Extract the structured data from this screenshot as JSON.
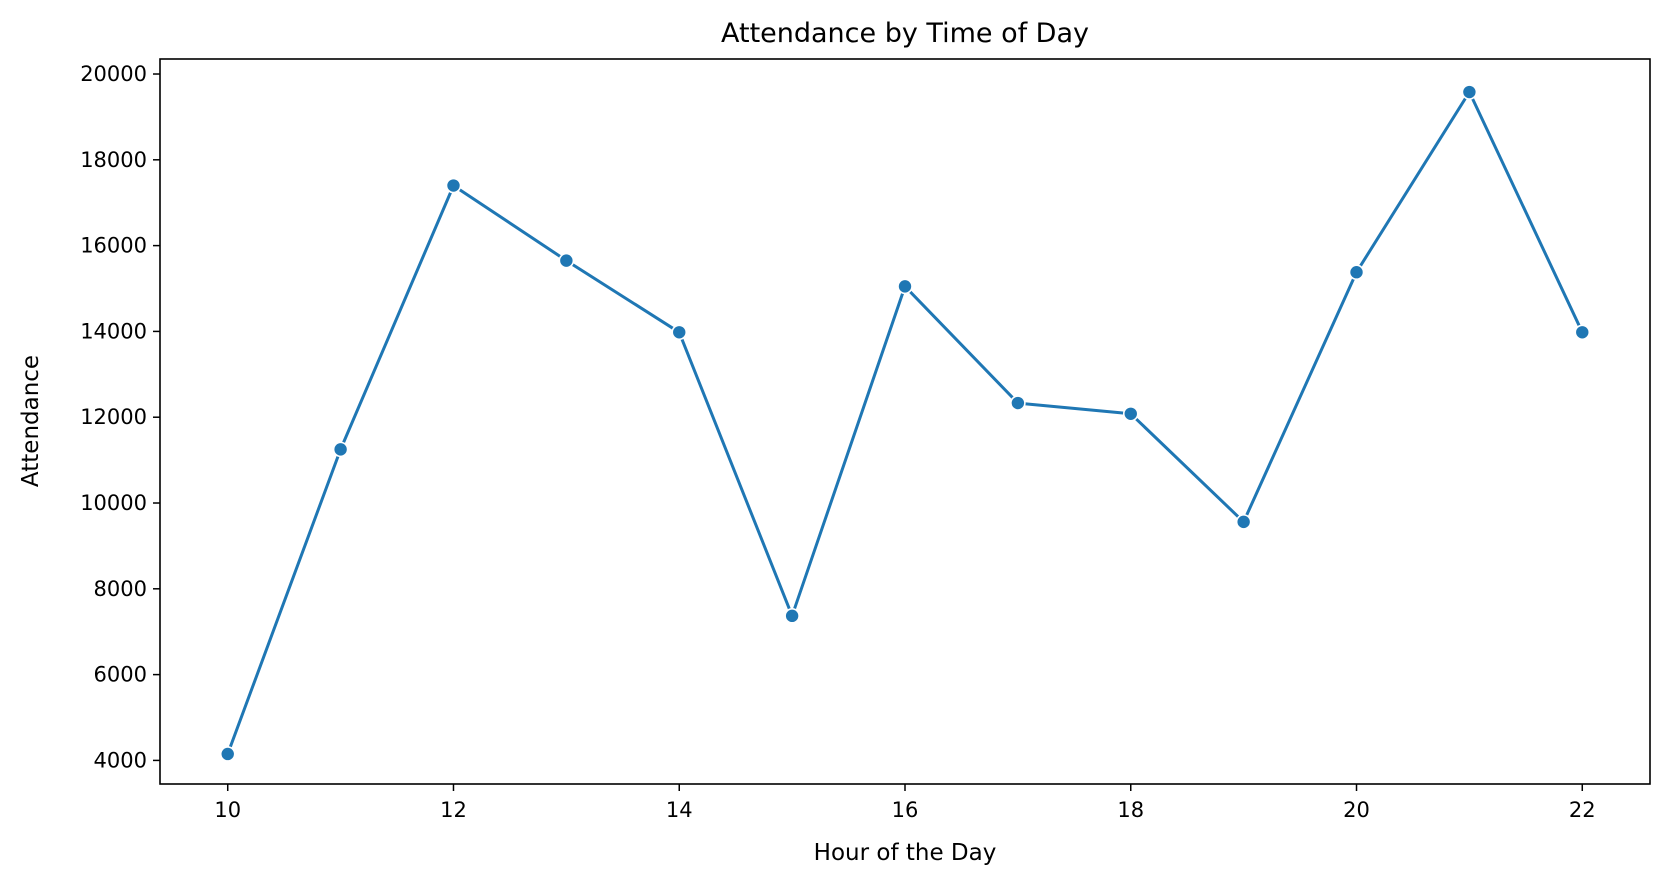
{
  "chart_data": {
    "type": "line",
    "title": "Attendance by Time of Day",
    "xlabel": "Hour of the Day",
    "ylabel": "Attendance",
    "x": [
      10,
      11,
      12,
      13,
      14,
      15,
      16,
      17,
      18,
      19,
      20,
      21,
      22
    ],
    "series": [
      {
        "values": [
          4150,
          11250,
          17400,
          15650,
          13980,
          7370,
          15050,
          12330,
          12080,
          9560,
          15380,
          19580,
          13980
        ],
        "color": "#1f77b4"
      }
    ],
    "xlim": [
      9.4,
      22.6
    ],
    "ylim": [
      3450,
      20350
    ],
    "xticks": [
      10,
      12,
      14,
      16,
      18,
      20,
      22
    ],
    "yticks": [
      4000,
      6000,
      8000,
      10000,
      12000,
      14000,
      16000,
      18000,
      20000
    ],
    "grid": false,
    "markers": true
  }
}
